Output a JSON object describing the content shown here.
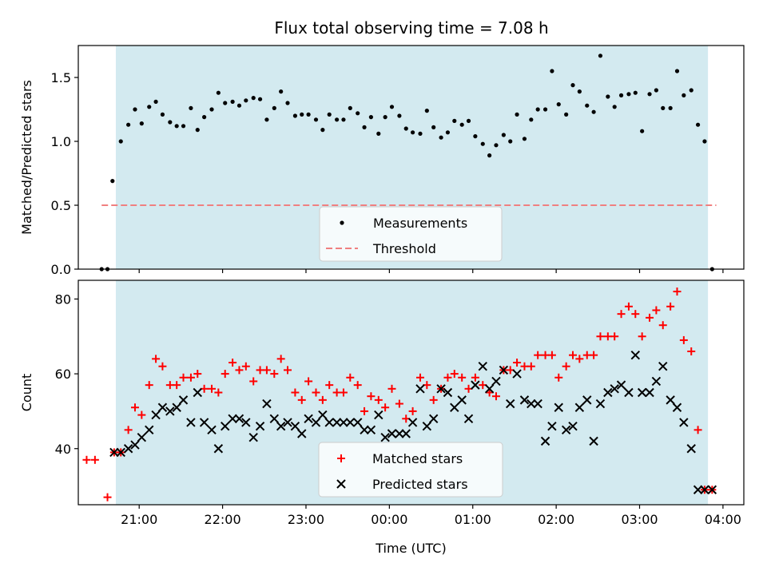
{
  "title": "Flux total observing time = 7.08 h",
  "colors": {
    "shade": "#d3eaf0",
    "measurement": "#000000",
    "threshold": "#f08080",
    "matched": "#ff0000",
    "predicted": "#000000"
  },
  "chart_data": [
    {
      "type": "scatter",
      "ylabel": "Matched/Predicted stars",
      "ylim": [
        0.0,
        1.75
      ],
      "yticks": [
        0.0,
        0.5,
        1.0,
        1.5
      ],
      "ytick_labels": [
        "0.0",
        "0.5",
        "1.0",
        "1.5"
      ],
      "xlim_hours": [
        20.27,
        28.25
      ],
      "shaded_span_hours": [
        20.72,
        27.82
      ],
      "threshold": {
        "name": "Threshold",
        "y": 0.5,
        "x_hours": [
          20.55,
          27.92
        ]
      },
      "legend": {
        "placement": "lower center",
        "entries": [
          "Measurements",
          "Threshold"
        ]
      },
      "series": [
        {
          "name": "Measurements",
          "x_hours": [
            20.55,
            20.62,
            20.68,
            20.78,
            20.87,
            20.95,
            21.03,
            21.12,
            21.2,
            21.28,
            21.37,
            21.45,
            21.53,
            21.62,
            21.7,
            21.78,
            21.87,
            21.95,
            22.03,
            22.12,
            22.2,
            22.28,
            22.37,
            22.45,
            22.53,
            22.62,
            22.7,
            22.78,
            22.87,
            22.95,
            23.03,
            23.12,
            23.2,
            23.28,
            23.37,
            23.45,
            23.53,
            23.62,
            23.7,
            23.78,
            23.87,
            23.95,
            24.03,
            24.12,
            24.2,
            24.28,
            24.37,
            24.45,
            24.53,
            24.62,
            24.7,
            24.78,
            24.87,
            24.95,
            25.03,
            25.12,
            25.2,
            25.28,
            25.37,
            25.45,
            25.53,
            25.62,
            25.7,
            25.78,
            25.87,
            25.95,
            26.03,
            26.12,
            26.2,
            26.28,
            26.37,
            26.45,
            26.53,
            26.62,
            26.7,
            26.78,
            26.87,
            26.95,
            27.03,
            27.12,
            27.2,
            27.28,
            27.37,
            27.45,
            27.53,
            27.62,
            27.7,
            27.78,
            27.87
          ],
          "y": [
            0.0,
            0.0,
            0.69,
            1.0,
            1.13,
            1.25,
            1.14,
            1.27,
            1.31,
            1.21,
            1.15,
            1.12,
            1.12,
            1.26,
            1.09,
            1.19,
            1.25,
            1.38,
            1.3,
            1.31,
            1.28,
            1.32,
            1.34,
            1.33,
            1.17,
            1.26,
            1.39,
            1.3,
            1.2,
            1.21,
            1.21,
            1.17,
            1.09,
            1.21,
            1.17,
            1.17,
            1.26,
            1.22,
            1.11,
            1.19,
            1.06,
            1.19,
            1.27,
            1.2,
            1.1,
            1.07,
            1.06,
            1.24,
            1.11,
            1.03,
            1.07,
            1.16,
            1.13,
            1.16,
            1.04,
            0.98,
            0.89,
            0.97,
            1.05,
            1.0,
            1.21,
            1.02,
            1.17,
            1.25,
            1.25,
            1.55,
            1.29,
            1.21,
            1.44,
            1.39,
            1.28,
            1.23,
            1.67,
            1.35,
            1.27,
            1.36,
            1.37,
            1.38,
            1.08,
            1.37,
            1.4,
            1.26,
            1.26,
            1.55,
            1.36,
            1.4,
            1.13,
            1.0,
            0.0
          ]
        }
      ]
    },
    {
      "type": "scatter",
      "ylabel": "Count",
      "xlabel": "Time (UTC)",
      "ylim": [
        25,
        85
      ],
      "yticks": [
        40,
        60,
        80
      ],
      "ytick_labels": [
        "40",
        "60",
        "80"
      ],
      "xlim_hours": [
        20.27,
        28.25
      ],
      "xticks_hours": [
        21,
        22,
        23,
        24,
        25,
        26,
        27,
        28
      ],
      "xtick_labels": [
        "21:00",
        "22:00",
        "23:00",
        "00:00",
        "01:00",
        "02:00",
        "03:00",
        "04:00"
      ],
      "shaded_span_hours": [
        20.72,
        27.82
      ],
      "legend": {
        "placement": "lower center",
        "entries": [
          "Matched stars",
          "Predicted stars"
        ]
      },
      "series": [
        {
          "name": "Matched stars",
          "marker": "plus",
          "x_hours": [
            20.37,
            20.47,
            20.62,
            20.7,
            20.78,
            20.87,
            20.95,
            21.03,
            21.12,
            21.2,
            21.28,
            21.37,
            21.45,
            21.53,
            21.62,
            21.7,
            21.78,
            21.87,
            21.95,
            22.03,
            22.12,
            22.2,
            22.28,
            22.37,
            22.45,
            22.53,
            22.62,
            22.7,
            22.78,
            22.87,
            22.95,
            23.03,
            23.12,
            23.2,
            23.28,
            23.37,
            23.45,
            23.53,
            23.62,
            23.7,
            23.78,
            23.87,
            23.95,
            24.03,
            24.12,
            24.2,
            24.28,
            24.37,
            24.45,
            24.53,
            24.62,
            24.7,
            24.78,
            24.87,
            24.95,
            25.03,
            25.12,
            25.2,
            25.28,
            25.37,
            25.45,
            25.53,
            25.62,
            25.7,
            25.78,
            25.87,
            25.95,
            26.03,
            26.12,
            26.2,
            26.28,
            26.37,
            26.45,
            26.53,
            26.62,
            26.7,
            26.78,
            26.87,
            26.95,
            27.03,
            27.12,
            27.2,
            27.28,
            27.37,
            27.45,
            27.53,
            27.62,
            27.7,
            27.78,
            27.87
          ],
          "y": [
            37,
            37,
            27,
            39,
            39,
            45,
            51,
            49,
            57,
            64,
            62,
            57,
            57,
            59,
            59,
            60,
            56,
            56,
            55,
            60,
            63,
            61,
            62,
            58,
            61,
            61,
            60,
            64,
            61,
            55,
            53,
            58,
            55,
            53,
            57,
            55,
            55,
            59,
            57,
            50,
            54,
            53,
            51,
            56,
            52,
            48,
            50,
            59,
            57,
            53,
            56,
            59,
            60,
            59,
            56,
            59,
            57,
            55,
            54,
            61,
            61,
            63,
            62,
            62,
            65,
            65,
            65,
            59,
            62,
            65,
            64,
            65,
            65,
            70,
            70,
            70,
            76,
            78,
            76,
            70,
            75,
            77,
            73,
            78,
            82,
            69,
            66,
            45,
            29,
            29
          ]
        },
        {
          "name": "Predicted stars",
          "marker": "x",
          "x_hours": [
            20.7,
            20.78,
            20.87,
            20.95,
            21.03,
            21.12,
            21.2,
            21.28,
            21.37,
            21.45,
            21.53,
            21.62,
            21.7,
            21.78,
            21.87,
            21.95,
            22.03,
            22.12,
            22.2,
            22.28,
            22.37,
            22.45,
            22.53,
            22.62,
            22.7,
            22.78,
            22.87,
            22.95,
            23.03,
            23.12,
            23.2,
            23.28,
            23.37,
            23.45,
            23.53,
            23.62,
            23.7,
            23.78,
            23.87,
            23.95,
            24.03,
            24.12,
            24.2,
            24.28,
            24.37,
            24.45,
            24.53,
            24.62,
            24.7,
            24.78,
            24.87,
            24.95,
            25.03,
            25.12,
            25.2,
            25.28,
            25.37,
            25.45,
            25.53,
            25.62,
            25.7,
            25.78,
            25.87,
            25.95,
            26.03,
            26.12,
            26.2,
            26.28,
            26.37,
            26.45,
            26.53,
            26.62,
            26.7,
            26.78,
            26.87,
            26.95,
            27.03,
            27.12,
            27.2,
            27.28,
            27.37,
            27.45,
            27.53,
            27.62,
            27.7,
            27.78,
            27.87
          ],
          "y": [
            39,
            39,
            40,
            41,
            43,
            45,
            49,
            51,
            50,
            51,
            53,
            47,
            55,
            47,
            45,
            40,
            46,
            48,
            48,
            47,
            43,
            46,
            52,
            48,
            46,
            47,
            46,
            44,
            48,
            47,
            49,
            47,
            47,
            47,
            47,
            47,
            45,
            45,
            49,
            43,
            44,
            44,
            44,
            47,
            56,
            46,
            48,
            56,
            55,
            51,
            53,
            48,
            57,
            62,
            56,
            58,
            61,
            52,
            60,
            53,
            52,
            52,
            42,
            46,
            51,
            45,
            46,
            51,
            53,
            42,
            52,
            55,
            56,
            57,
            55,
            65,
            55,
            55,
            58,
            62,
            53,
            51,
            47,
            40,
            29,
            29,
            29
          ]
        }
      ]
    }
  ]
}
